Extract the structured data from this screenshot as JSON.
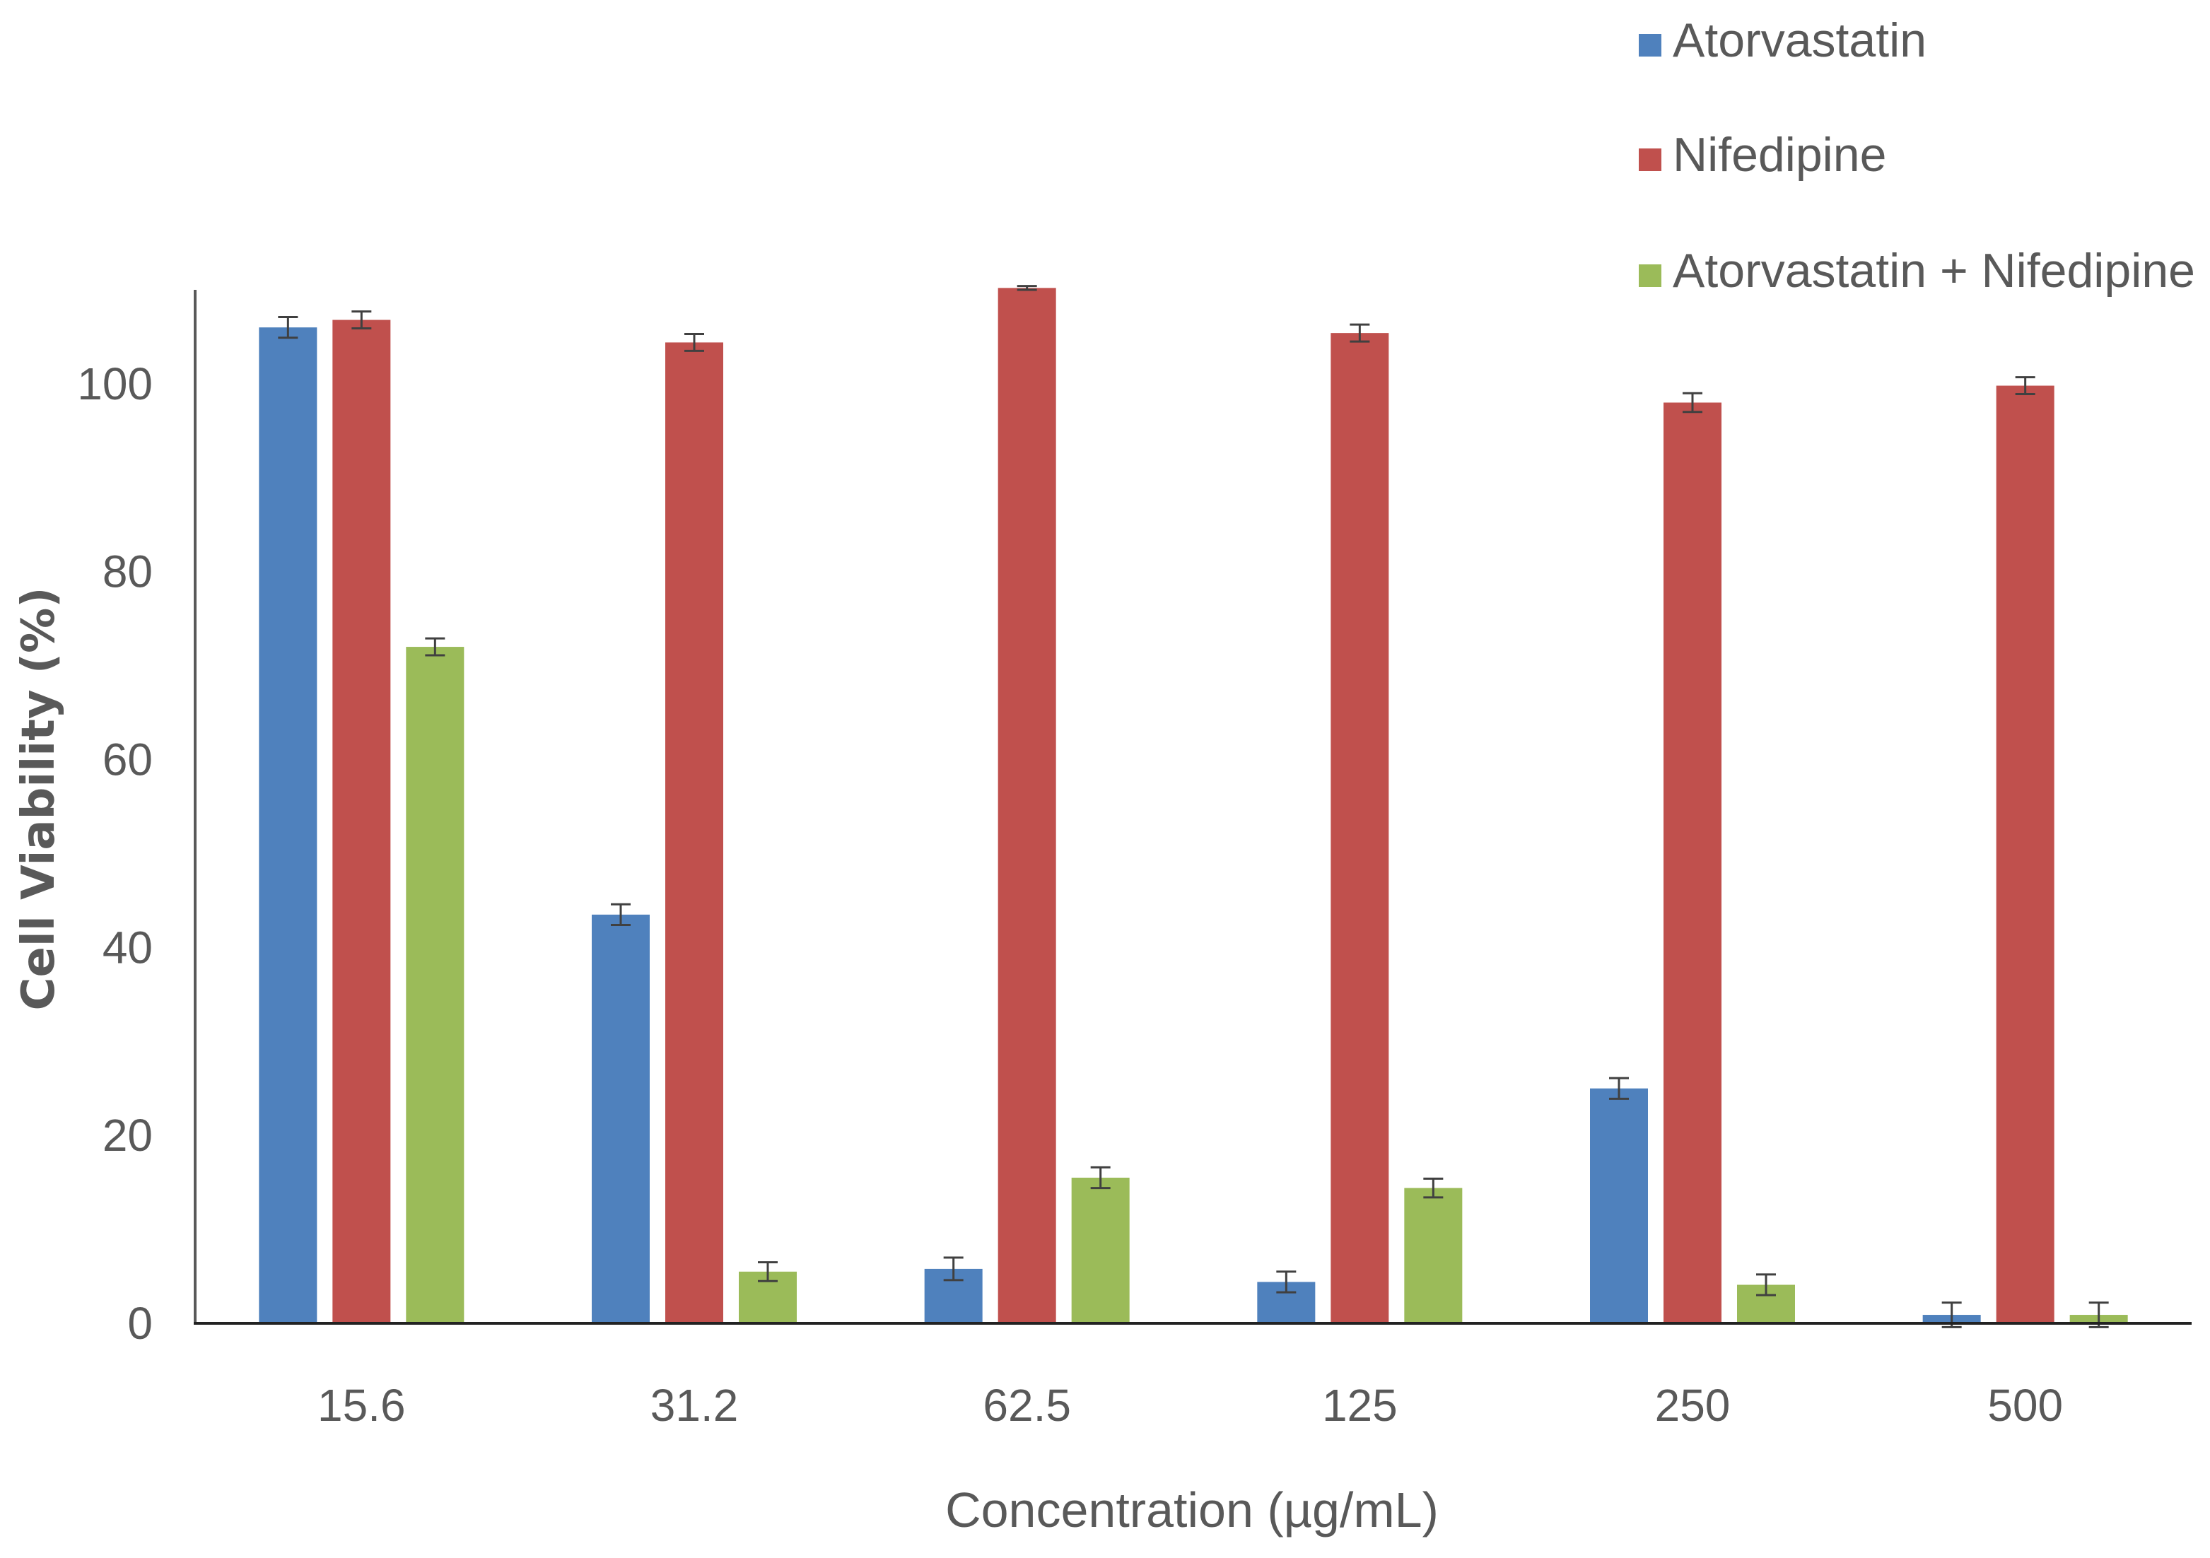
{
  "chart_data": {
    "type": "bar",
    "title": "",
    "xlabel": "Concentration (µg/mL)",
    "ylabel": "Cell Viability (%)",
    "ylim": [
      0,
      110
    ],
    "yticks": [
      "0",
      "20",
      "40",
      "60",
      "80",
      "100"
    ],
    "ytick_values": [
      0,
      20,
      40,
      60,
      80,
      100
    ],
    "categories": [
      "15.6",
      "31.2",
      "62.5",
      "125",
      "250",
      "500"
    ],
    "legend_position": "top-right",
    "series": [
      {
        "name": "Atorvastatin",
        "color": "#4F81BD",
        "values": [
          106,
          43.5,
          5.8,
          4.4,
          25,
          0.9
        ],
        "errors": [
          1.1,
          1.1,
          1.2,
          1.1,
          1.1,
          1.3
        ]
      },
      {
        "name": "Nifedipine",
        "color": "#C0504D",
        "values": [
          106.8,
          104.4,
          110.2,
          105.4,
          98,
          99.8
        ],
        "errors": [
          0.9,
          0.9,
          0.2,
          0.9,
          1.0,
          0.9
        ]
      },
      {
        "name": "Atorvastatin + Nifedipine",
        "color": "#9BBB59",
        "values": [
          72,
          5.5,
          15.5,
          14.4,
          4.1,
          0.9
        ],
        "errors": [
          0.9,
          1.0,
          1.1,
          1.0,
          1.1,
          1.3
        ]
      }
    ]
  }
}
